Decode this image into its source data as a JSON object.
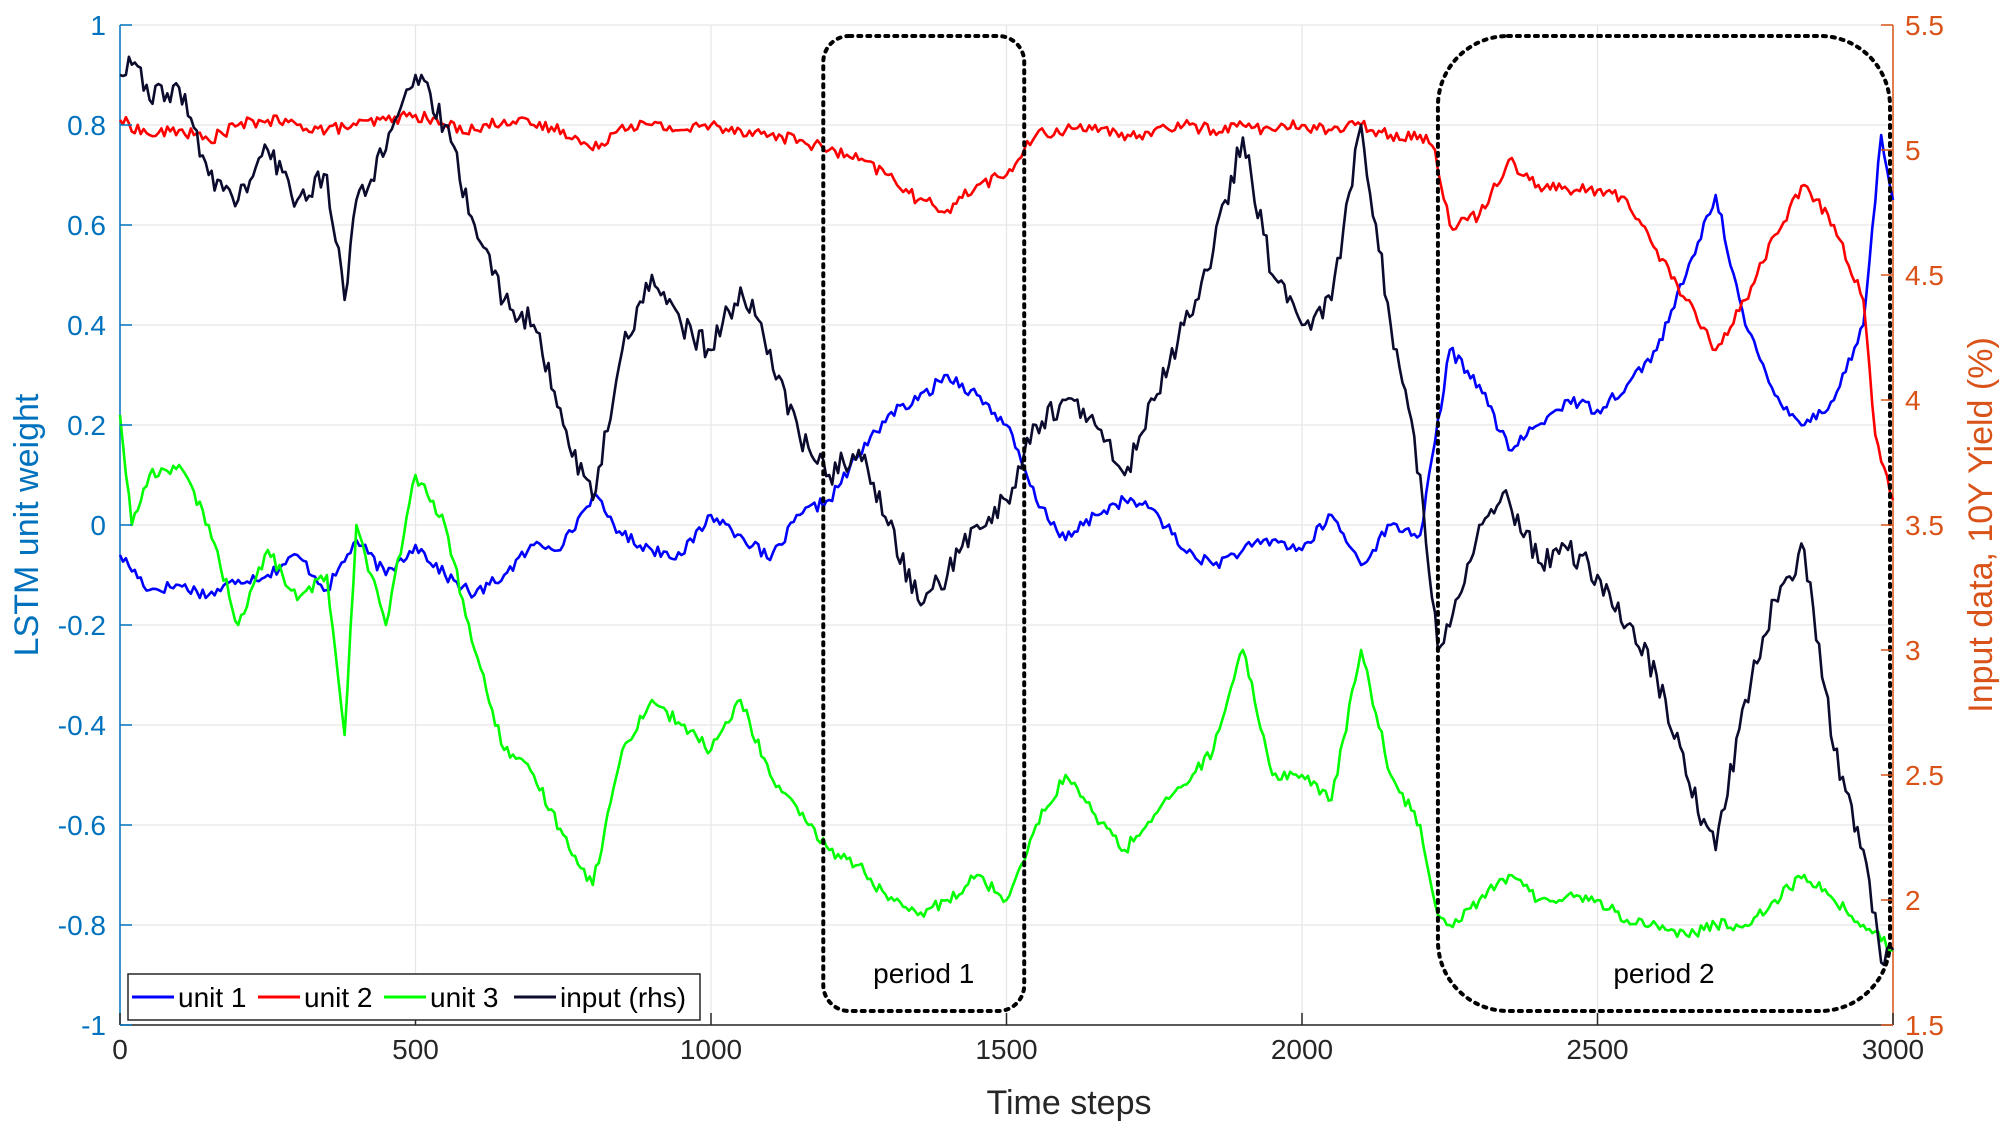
{
  "chart_data": {
    "type": "line",
    "xlabel": "Time steps",
    "ylabel_left": "LSTM unit weight",
    "ylabel_right": "Input data, 10Y Yield (%)",
    "xlim": [
      0,
      3000
    ],
    "ylim_left": [
      -1,
      1
    ],
    "ylim_right": [
      1.5,
      5.5
    ],
    "x_ticks": [
      "0",
      "500",
      "1000",
      "1500",
      "2000",
      "2500",
      "3000"
    ],
    "y_ticks_left": [
      "-1",
      "-0.8",
      "-0.6",
      "-0.4",
      "-0.2",
      "0",
      "0.2",
      "0.4",
      "0.6",
      "0.8",
      "1"
    ],
    "y_ticks_right": [
      "1.5",
      "2",
      "2.5",
      "3",
      "3.5",
      "4",
      "4.5",
      "5",
      "5.5"
    ],
    "grid": true,
    "legend_position": "bottom-left",
    "colors": {
      "left_axis": "#0072bd",
      "right_axis": "#d95319",
      "grid": "#e6e6e6",
      "box": "#000000"
    },
    "series": [
      {
        "name": "unit 1",
        "axis": "left",
        "color": "#0000ff",
        "x": [
          0,
          50,
          100,
          150,
          200,
          250,
          300,
          350,
          400,
          450,
          500,
          550,
          600,
          650,
          700,
          750,
          800,
          850,
          900,
          950,
          1000,
          1050,
          1100,
          1150,
          1200,
          1250,
          1300,
          1350,
          1400,
          1450,
          1500,
          1550,
          1600,
          1650,
          1700,
          1750,
          1800,
          1850,
          1900,
          1950,
          2000,
          2050,
          2100,
          2150,
          2200,
          2250,
          2300,
          2350,
          2400,
          2450,
          2500,
          2550,
          2600,
          2650,
          2700,
          2750,
          2800,
          2850,
          2900,
          2950,
          2980,
          3000
        ],
        "values": [
          -0.06,
          -0.13,
          -0.12,
          -0.14,
          -0.11,
          -0.1,
          -0.06,
          -0.13,
          -0.03,
          -0.1,
          -0.04,
          -0.1,
          -0.14,
          -0.1,
          -0.04,
          -0.04,
          0.06,
          -0.02,
          -0.05,
          -0.06,
          0.02,
          -0.02,
          -0.07,
          0.02,
          0.05,
          0.14,
          0.22,
          0.25,
          0.3,
          0.26,
          0.2,
          0.05,
          -0.03,
          0.02,
          0.05,
          0.03,
          -0.05,
          -0.08,
          -0.05,
          -0.03,
          -0.05,
          0.02,
          -0.08,
          0.0,
          -0.02,
          0.35,
          0.28,
          0.15,
          0.2,
          0.25,
          0.23,
          0.28,
          0.35,
          0.5,
          0.66,
          0.4,
          0.26,
          0.2,
          0.25,
          0.4,
          0.78,
          0.65
        ]
      },
      {
        "name": "unit 2",
        "axis": "left",
        "color": "#ff0000",
        "x": [
          0,
          50,
          100,
          150,
          200,
          250,
          300,
          350,
          400,
          450,
          500,
          550,
          600,
          650,
          700,
          750,
          800,
          850,
          900,
          950,
          1000,
          1050,
          1100,
          1150,
          1200,
          1250,
          1300,
          1350,
          1400,
          1450,
          1500,
          1550,
          1600,
          1650,
          1700,
          1750,
          1800,
          1850,
          1900,
          1950,
          2000,
          2050,
          2100,
          2150,
          2200,
          2225,
          2250,
          2300,
          2350,
          2400,
          2450,
          2500,
          2550,
          2600,
          2650,
          2700,
          2750,
          2800,
          2850,
          2900,
          2950,
          2970,
          3000
        ],
        "values": [
          0.81,
          0.78,
          0.79,
          0.77,
          0.8,
          0.81,
          0.8,
          0.79,
          0.8,
          0.81,
          0.82,
          0.8,
          0.79,
          0.81,
          0.8,
          0.79,
          0.75,
          0.8,
          0.8,
          0.79,
          0.8,
          0.79,
          0.78,
          0.77,
          0.75,
          0.73,
          0.7,
          0.65,
          0.63,
          0.68,
          0.7,
          0.78,
          0.79,
          0.8,
          0.77,
          0.79,
          0.8,
          0.79,
          0.8,
          0.79,
          0.8,
          0.79,
          0.8,
          0.78,
          0.78,
          0.75,
          0.6,
          0.62,
          0.73,
          0.68,
          0.67,
          0.67,
          0.65,
          0.55,
          0.45,
          0.35,
          0.45,
          0.58,
          0.68,
          0.6,
          0.45,
          0.18,
          0.05
        ]
      },
      {
        "name": "unit 3",
        "axis": "left",
        "color": "#00ff00",
        "x": [
          0,
          20,
          50,
          100,
          150,
          200,
          250,
          300,
          350,
          380,
          400,
          450,
          500,
          550,
          600,
          650,
          700,
          750,
          800,
          850,
          900,
          950,
          1000,
          1050,
          1100,
          1150,
          1200,
          1250,
          1300,
          1350,
          1400,
          1450,
          1500,
          1550,
          1600,
          1650,
          1700,
          1750,
          1800,
          1850,
          1900,
          1950,
          2000,
          2050,
          2100,
          2150,
          2200,
          2230,
          2250,
          2300,
          2350,
          2400,
          2450,
          2500,
          2550,
          2600,
          2650,
          2700,
          2750,
          2800,
          2850,
          2900,
          2950,
          3000
        ],
        "values": [
          0.22,
          0.0,
          0.1,
          0.12,
          0.0,
          -0.2,
          -0.05,
          -0.15,
          -0.1,
          -0.42,
          0.0,
          -0.2,
          0.1,
          0.0,
          -0.25,
          -0.45,
          -0.5,
          -0.62,
          -0.72,
          -0.45,
          -0.35,
          -0.4,
          -0.45,
          -0.35,
          -0.5,
          -0.58,
          -0.65,
          -0.68,
          -0.75,
          -0.78,
          -0.75,
          -0.7,
          -0.75,
          -0.6,
          -0.5,
          -0.58,
          -0.65,
          -0.58,
          -0.52,
          -0.45,
          -0.25,
          -0.5,
          -0.5,
          -0.55,
          -0.25,
          -0.5,
          -0.6,
          -0.78,
          -0.8,
          -0.75,
          -0.7,
          -0.75,
          -0.74,
          -0.75,
          -0.79,
          -0.8,
          -0.82,
          -0.8,
          -0.8,
          -0.75,
          -0.7,
          -0.75,
          -0.8,
          -0.85
        ]
      },
      {
        "name": "input (rhs)",
        "axis": "right",
        "color": "#0b0b2e",
        "x": [
          0,
          25,
          50,
          100,
          150,
          200,
          250,
          300,
          350,
          380,
          400,
          450,
          500,
          550,
          600,
          650,
          700,
          750,
          800,
          850,
          900,
          950,
          1000,
          1050,
          1100,
          1150,
          1200,
          1250,
          1300,
          1350,
          1400,
          1450,
          1500,
          1550,
          1600,
          1650,
          1700,
          1750,
          1800,
          1850,
          1900,
          1950,
          2000,
          2050,
          2100,
          2150,
          2200,
          2230,
          2260,
          2300,
          2350,
          2400,
          2450,
          2500,
          2550,
          2600,
          2650,
          2700,
          2750,
          2800,
          2850,
          2900,
          2950,
          2980,
          3000
        ],
        "values": [
          5.3,
          5.35,
          5.2,
          5.25,
          4.9,
          4.8,
          5.0,
          4.8,
          4.9,
          4.4,
          4.8,
          5.0,
          5.3,
          5.1,
          4.7,
          4.4,
          4.3,
          3.9,
          3.6,
          4.2,
          4.5,
          4.3,
          4.2,
          4.45,
          4.2,
          3.85,
          3.7,
          3.8,
          3.5,
          3.2,
          3.3,
          3.5,
          3.6,
          3.9,
          4.0,
          3.9,
          3.7,
          4.0,
          4.3,
          4.6,
          5.05,
          4.5,
          4.3,
          4.4,
          5.1,
          4.3,
          3.7,
          3.0,
          3.2,
          3.5,
          3.6,
          3.35,
          3.4,
          3.3,
          3.1,
          2.9,
          2.5,
          2.2,
          2.8,
          3.2,
          3.4,
          2.6,
          2.2,
          1.75,
          1.8
        ]
      }
    ],
    "annotations": [
      {
        "label": "period 1",
        "x_range": [
          1190,
          1530
        ]
      },
      {
        "label": "period 2",
        "x_range": [
          2230,
          3000
        ]
      }
    ]
  }
}
